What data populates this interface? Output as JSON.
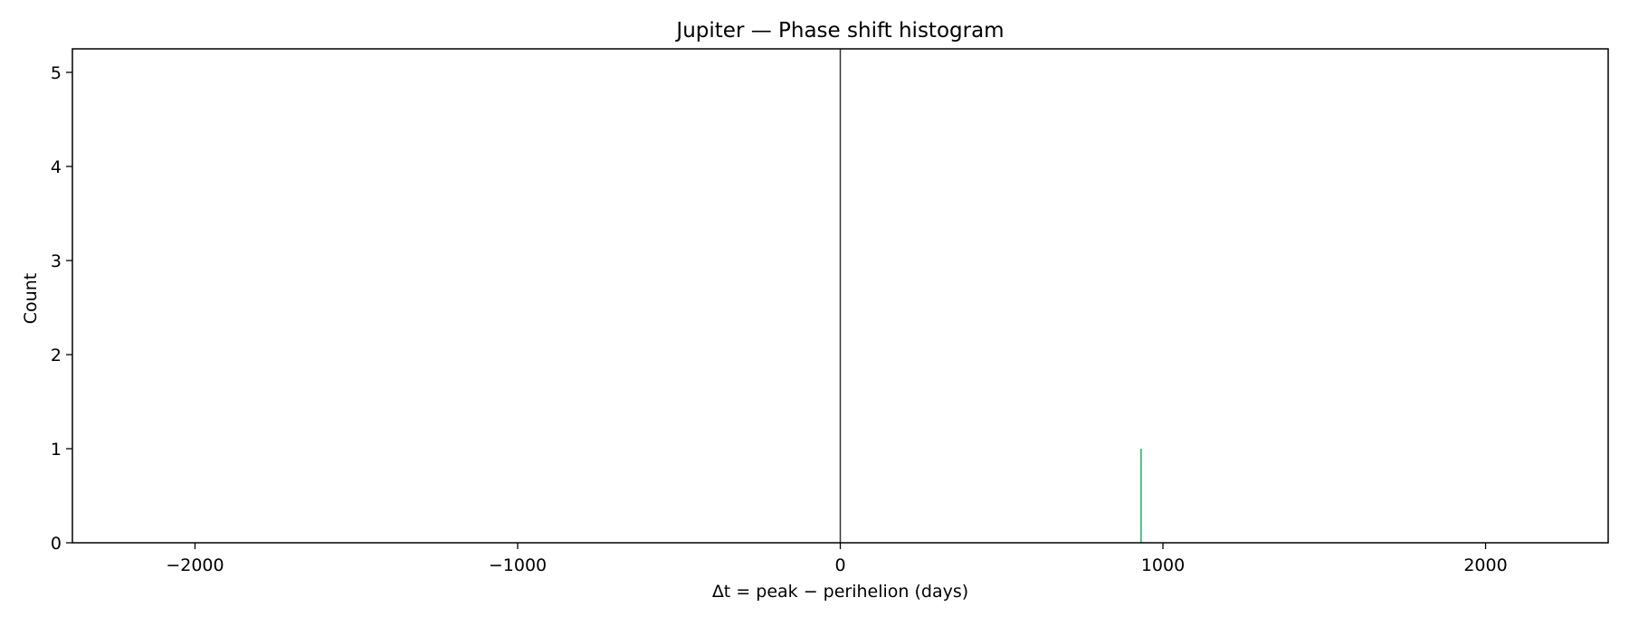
{
  "chart_data": {
    "type": "bar",
    "title": "Jupiter — Phase shift histogram",
    "xlabel": "Δt = peak − perihelion (days)",
    "ylabel": "Count",
    "xlim": [
      -2380,
      2380
    ],
    "ylim": [
      0,
      5.25
    ],
    "x_ticks": [
      -2000,
      -1000,
      0,
      1000,
      2000
    ],
    "x_tick_labels": [
      "−2000",
      "−1000",
      "0",
      "1000",
      "2000"
    ],
    "y_ticks": [
      0,
      1,
      2,
      3,
      4,
      5
    ],
    "y_tick_labels": [
      "0",
      "1",
      "2",
      "3",
      "4",
      "5"
    ],
    "bins": [
      {
        "x_start": 930,
        "x_end": 934,
        "count": 1
      }
    ],
    "bar_color": "#2bb673",
    "reference_line": {
      "x": 0,
      "color": "#333333"
    },
    "grid": false,
    "legend": "none"
  }
}
